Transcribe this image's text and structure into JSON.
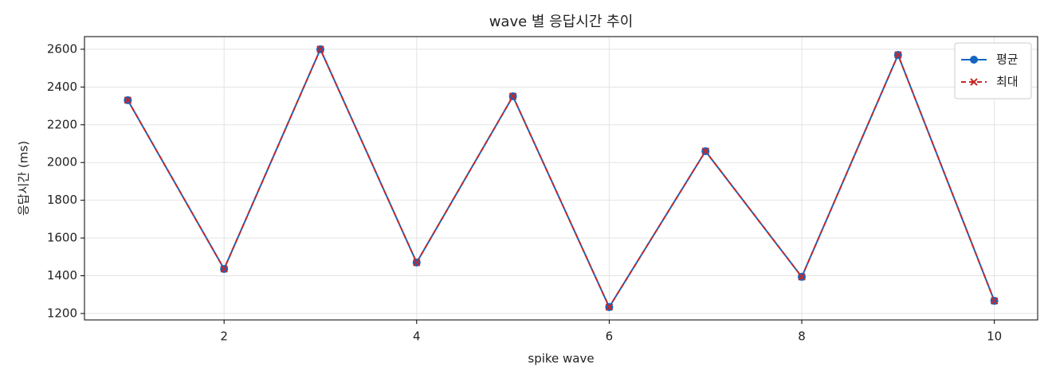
{
  "chart_data": {
    "type": "line",
    "title": "wave 별 응답시간 추이",
    "x_label": "spike wave",
    "y_label": "응답시간 (ms)",
    "x": [
      1,
      2,
      3,
      4,
      5,
      6,
      7,
      8,
      9,
      10
    ],
    "series": [
      {
        "name": "평균",
        "color": "#1565c0",
        "marker": "o",
        "linestyle": "solid",
        "values": [
          2330,
          1436,
          2600,
          1470,
          2351,
          1234,
          2060,
          1394,
          2570,
          1267
        ]
      },
      {
        "name": "최대",
        "color": "#c62828",
        "marker": "x",
        "linestyle": "dashed",
        "values": [
          2330,
          1436,
          2600,
          1470,
          2351,
          1234,
          2060,
          1394,
          2570,
          1267
        ]
      }
    ],
    "xlim": [
      0.55,
      10.45
    ],
    "xticks": [
      2,
      4,
      6,
      8,
      10
    ],
    "ylim": [
      1166,
      2667
    ],
    "yticks": [
      1200,
      1400,
      1600,
      1800,
      2000,
      2200,
      2400,
      2600
    ],
    "grid": true,
    "legend": "upper right"
  }
}
